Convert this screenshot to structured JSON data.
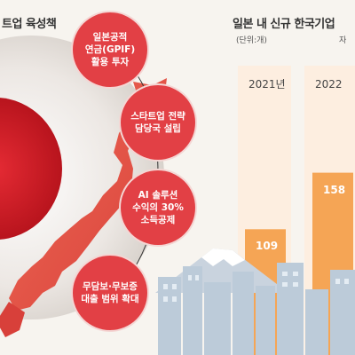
{
  "left_title": "트업 육성책",
  "policies": [
    {
      "lines": [
        "일본공적",
        "연금(GPIF)",
        "활용 투자"
      ]
    },
    {
      "lines": [
        "스타트업 전략",
        "담당국 설립"
      ]
    },
    {
      "lines": [
        "AI 솔루션",
        "수익의 30%",
        "소득공제"
      ]
    },
    {
      "lines": [
        "무담보·무보증",
        "대출 범위 확대"
      ]
    }
  ],
  "chart_data": {
    "type": "bar",
    "title": "일본 내 신규 한국기업",
    "unit": "(단위:개)",
    "unit_right_fragment": "자",
    "categories": [
      "2021년",
      "2022"
    ],
    "values": [
      109,
      158
    ]
  },
  "colors": {
    "bubble": "#e24045",
    "bar_fill": "#f5a555",
    "bar_bg": "#fdeee0",
    "flag_red": "#d9232d",
    "map": "#e8504a"
  }
}
